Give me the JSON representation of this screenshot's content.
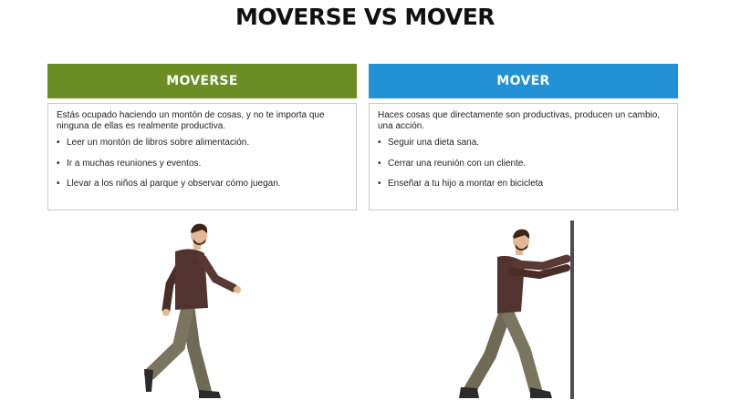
{
  "title": "MOVERSE VS MOVER",
  "colors": {
    "left_header": "#6a8e23",
    "right_header": "#2391d6"
  },
  "left": {
    "header": "MOVERSE",
    "description": "Estás ocupado haciendo un montón de cosas, y no te importa que ninguna de ellas es realmente productiva.",
    "bullets": [
      "Leer un montón de libros sobre alimentación.",
      "Ir a muchas reuniones y eventos.",
      "Llevar a los niños al parque y observar cómo juegan."
    ],
    "illustration": "man-walking"
  },
  "right": {
    "header": "MOVER",
    "description": "Haces cosas que directamente son productivas, producen un cambio, una acción.",
    "bullets": [
      "Seguir una dieta sana.",
      "Cerrar una reunión con un cliente.",
      "Enseñar a tu hijo a montar en bicicleta"
    ],
    "illustration": "man-pushing-wall"
  }
}
